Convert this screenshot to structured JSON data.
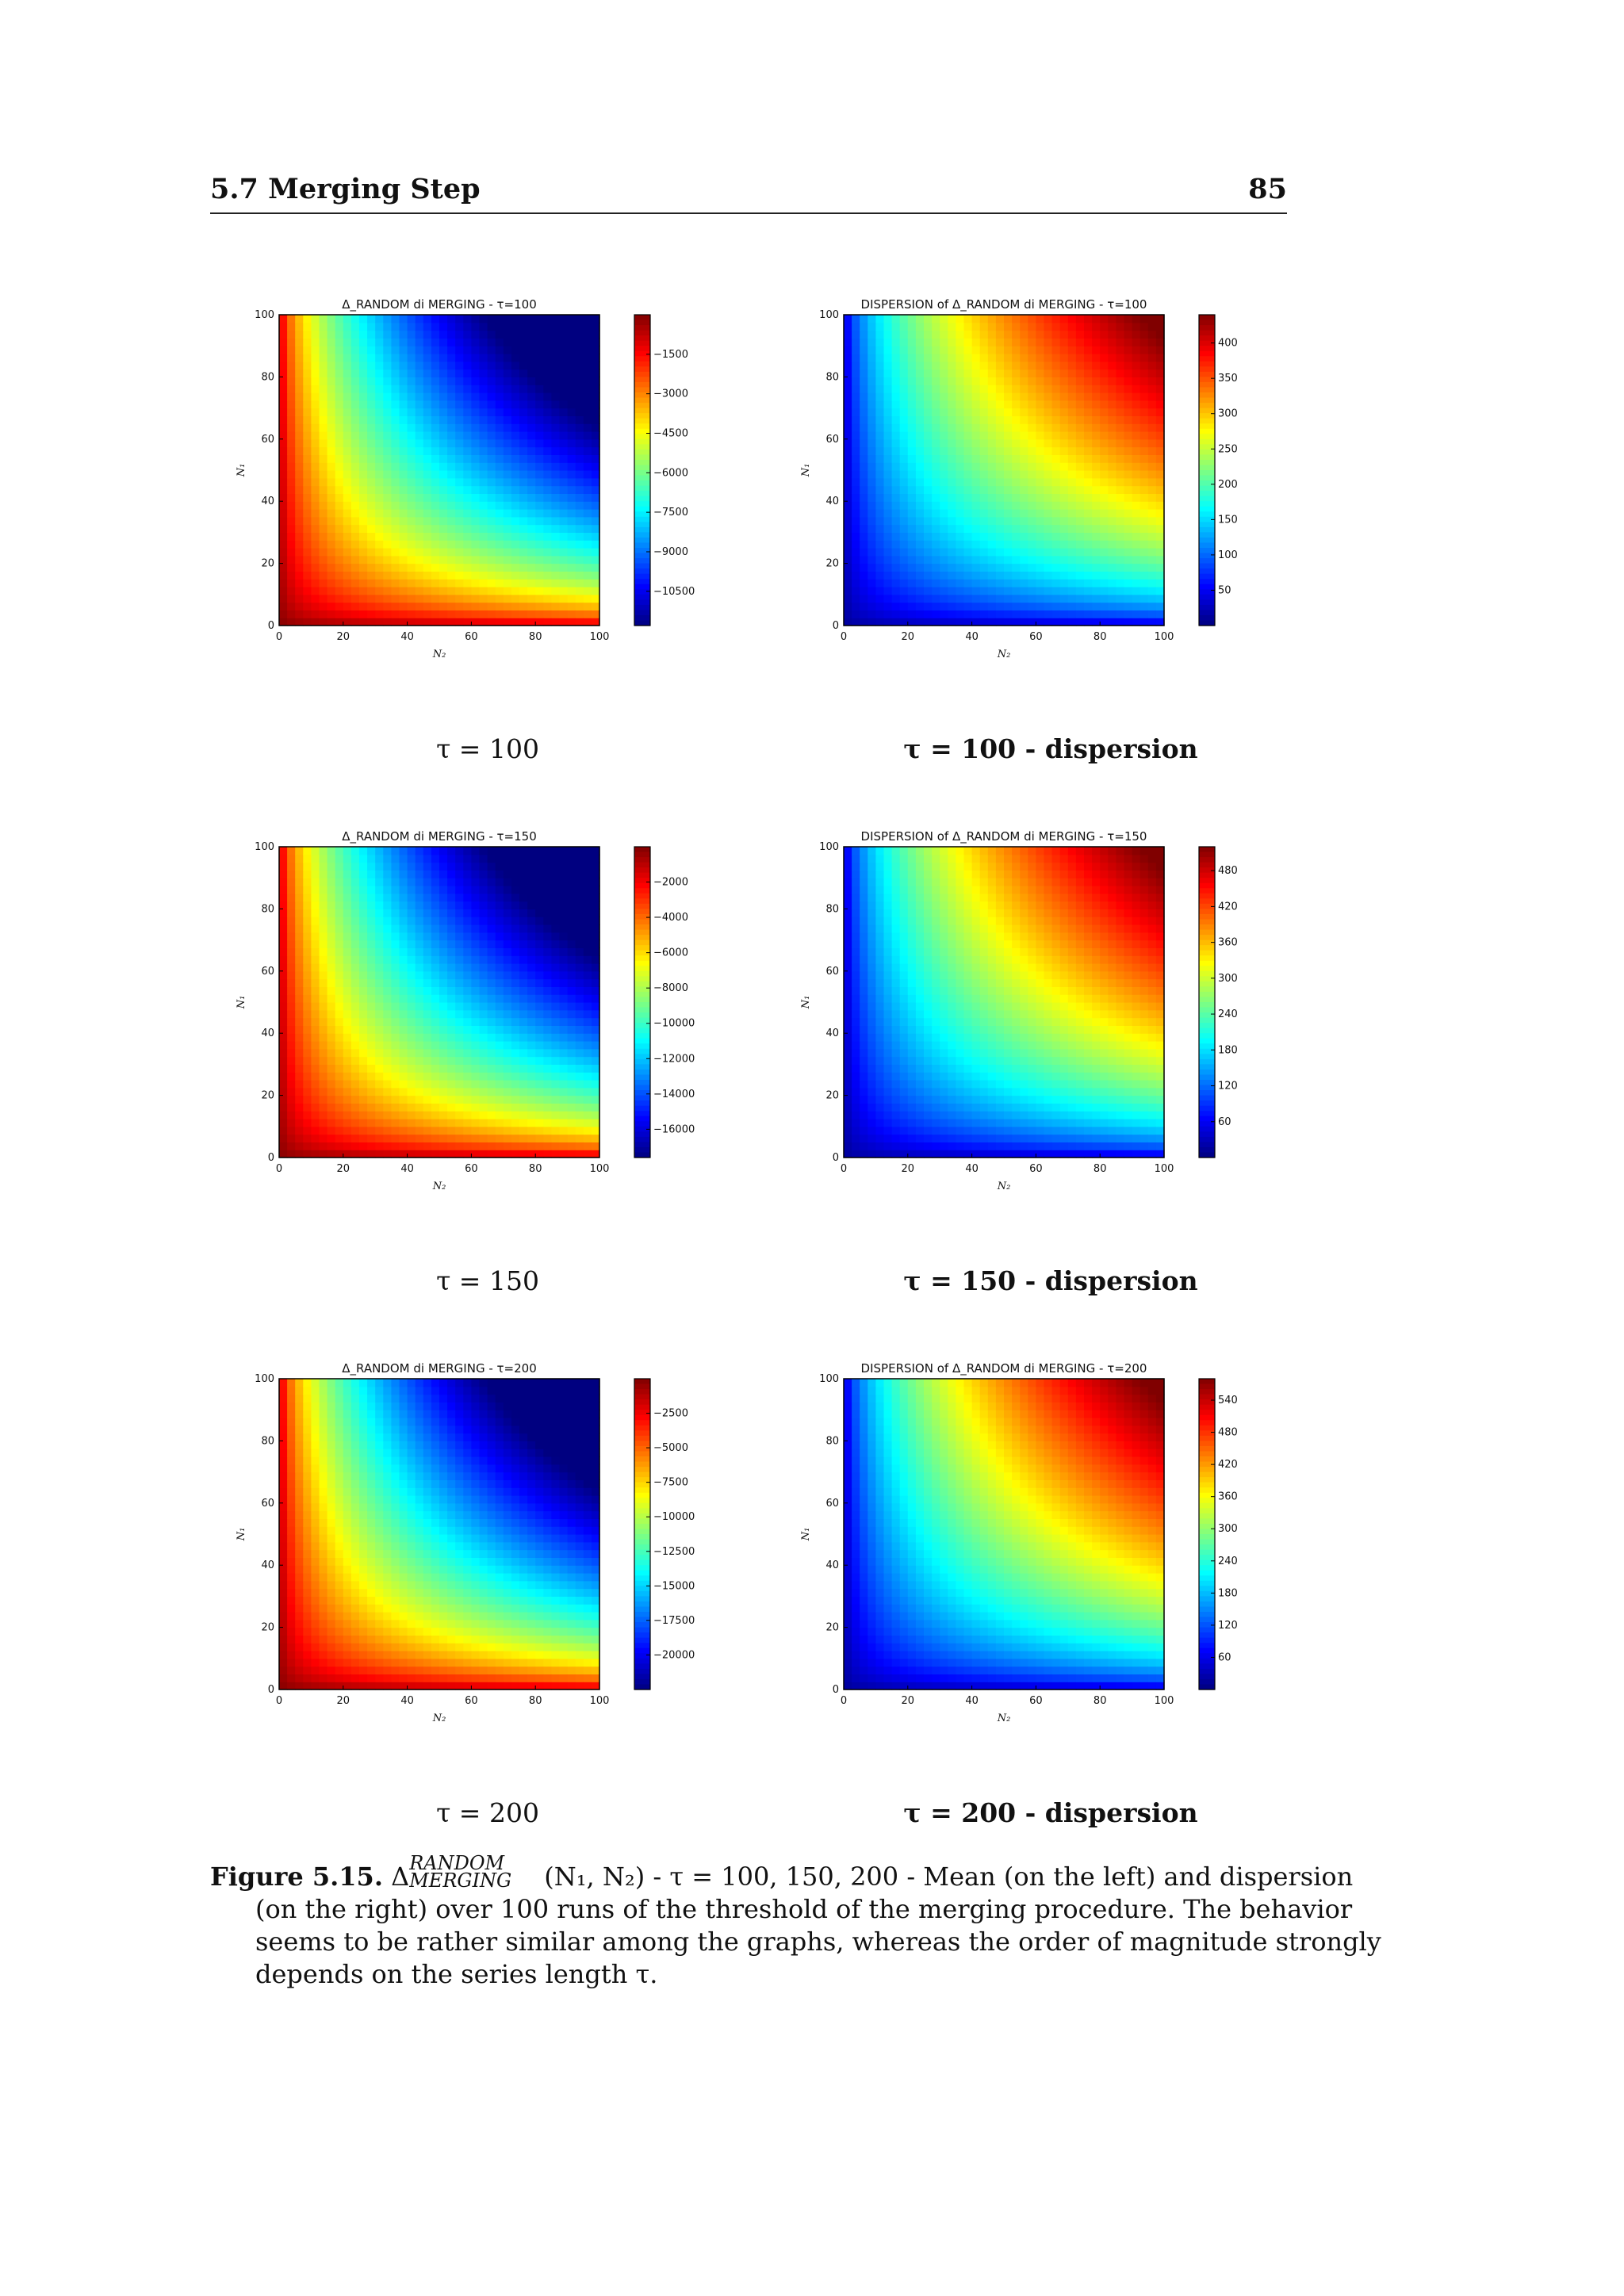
{
  "header": {
    "section": "5.7 Merging Step",
    "page_number": "85"
  },
  "subcaptions": [
    "τ = 100",
    "τ = 100 - dispersion",
    "τ = 150",
    "τ = 150 - dispersion",
    "τ = 200",
    "τ = 200 - dispersion"
  ],
  "caption": {
    "label": "Figure 5.15.",
    "delta": "Δ",
    "sup": "RANDOM",
    "sub": "MERGING",
    "args": "(N₁, N₂) - τ = 100, 150, 200 - Mean (on the left) and dispersion",
    "line2": "(on the right) over 100 runs of the threshold of the merging procedure. The behavior",
    "line3": "seems to be rather similar among the graphs, whereas the order of magnitude strongly",
    "line4": "depends on the series length τ."
  },
  "colormap": "jet",
  "chart_data": [
    {
      "type": "heatmap",
      "title": "Δ_RANDOM di MERGING - τ=100",
      "xlabel": "N₂",
      "ylabel": "N₁",
      "xlim": [
        0,
        100
      ],
      "ylim": [
        0,
        100
      ],
      "x_ticks": [
        0,
        20,
        40,
        60,
        80,
        100
      ],
      "y_ticks": [
        0,
        20,
        40,
        60,
        80,
        100
      ],
      "pattern": "mean",
      "colorbar_range": [
        -11800,
        0
      ],
      "colorbar_ticks": [
        -1500,
        -3000,
        -4500,
        -6000,
        -7500,
        -9000,
        -10500
      ]
    },
    {
      "type": "heatmap",
      "title": "DISPERSION of Δ_RANDOM di MERGING - τ=100",
      "xlabel": "N₂",
      "ylabel": "N₁",
      "xlim": [
        0,
        100
      ],
      "ylim": [
        0,
        100
      ],
      "x_ticks": [
        0,
        20,
        40,
        60,
        80,
        100
      ],
      "y_ticks": [
        0,
        20,
        40,
        60,
        80,
        100
      ],
      "pattern": "dispersion",
      "colorbar_range": [
        0,
        440
      ],
      "colorbar_ticks": [
        400,
        350,
        300,
        250,
        200,
        150,
        100,
        50
      ]
    },
    {
      "type": "heatmap",
      "title": "Δ_RANDOM di MERGING - τ=150",
      "xlabel": "N₂",
      "ylabel": "N₁",
      "xlim": [
        0,
        100
      ],
      "ylim": [
        0,
        100
      ],
      "x_ticks": [
        0,
        20,
        40,
        60,
        80,
        100
      ],
      "y_ticks": [
        0,
        20,
        40,
        60,
        80,
        100
      ],
      "pattern": "mean",
      "colorbar_range": [
        -17600,
        0
      ],
      "colorbar_ticks": [
        -2000,
        -4000,
        -6000,
        -8000,
        -10000,
        -12000,
        -14000,
        -16000
      ]
    },
    {
      "type": "heatmap",
      "title": "DISPERSION of Δ_RANDOM di MERGING - τ=150",
      "xlabel": "N₂",
      "ylabel": "N₁",
      "xlim": [
        0,
        100
      ],
      "ylim": [
        0,
        100
      ],
      "x_ticks": [
        0,
        20,
        40,
        60,
        80,
        100
      ],
      "y_ticks": [
        0,
        20,
        40,
        60,
        80,
        100
      ],
      "pattern": "dispersion",
      "colorbar_range": [
        0,
        520
      ],
      "colorbar_ticks": [
        480,
        420,
        360,
        300,
        240,
        180,
        120,
        60
      ]
    },
    {
      "type": "heatmap",
      "title": "Δ_RANDOM di MERGING - τ=200",
      "xlabel": "N₂",
      "ylabel": "N₁",
      "xlim": [
        0,
        100
      ],
      "ylim": [
        0,
        100
      ],
      "x_ticks": [
        0,
        20,
        40,
        60,
        80,
        100
      ],
      "y_ticks": [
        0,
        20,
        40,
        60,
        80,
        100
      ],
      "pattern": "mean",
      "colorbar_range": [
        -22500,
        0
      ],
      "colorbar_ticks": [
        -2500,
        -5000,
        -7500,
        -10000,
        -12500,
        -15000,
        -17500,
        -20000
      ]
    },
    {
      "type": "heatmap",
      "title": "DISPERSION of Δ_RANDOM di MERGING - τ=200",
      "xlabel": "N₂",
      "ylabel": "N₁",
      "xlim": [
        0,
        100
      ],
      "ylim": [
        0,
        100
      ],
      "x_ticks": [
        0,
        20,
        40,
        60,
        80,
        100
      ],
      "y_ticks": [
        0,
        20,
        40,
        60,
        80,
        100
      ],
      "pattern": "dispersion",
      "colorbar_range": [
        0,
        580
      ],
      "colorbar_ticks": [
        540,
        480,
        420,
        360,
        300,
        240,
        180,
        120,
        60
      ]
    }
  ]
}
